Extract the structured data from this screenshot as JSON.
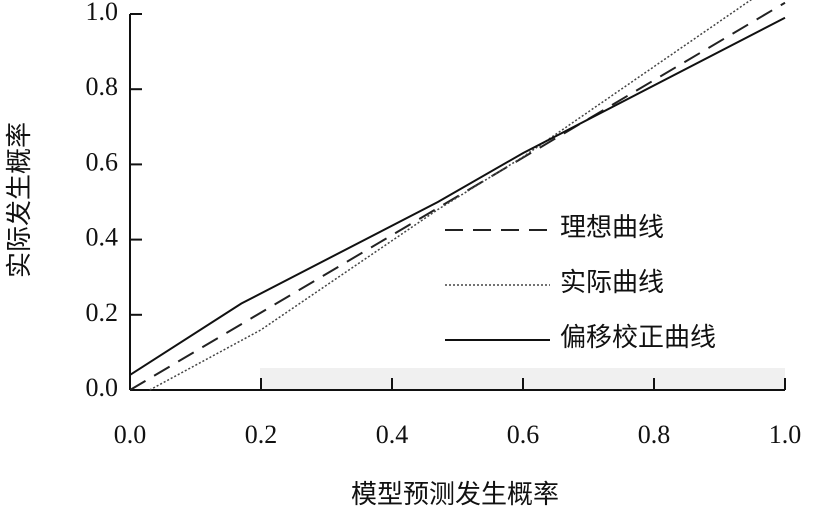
{
  "chart_data": {
    "type": "line",
    "x_label": "模型预测发生概率",
    "y_label": "实际发生概率",
    "xlim": [
      0,
      1
    ],
    "ylim": [
      0,
      1
    ],
    "xticks": [
      {
        "value": 0,
        "label": "0.0"
      },
      0.2,
      0.4,
      0.6,
      0.8,
      {
        "value": 1,
        "label": "1.0"
      }
    ],
    "yticks": [
      {
        "value": 0,
        "label": "0.0"
      },
      0.2,
      0.4,
      0.6,
      0.8,
      {
        "value": 1,
        "label": "1.0"
      }
    ],
    "series": [
      {
        "name": "理想曲线",
        "color": "#222222",
        "linestyle": "dashed",
        "x": [
          0,
          1
        ],
        "values": [
          0,
          1.03
        ]
      },
      {
        "name": "实际曲线",
        "color": "#444444",
        "linestyle": "dotted",
        "x": [
          0.03,
          0.2,
          0.47,
          0.6,
          0.95
        ],
        "values": [
          0,
          0.16,
          0.48,
          0.62,
          1.04
        ]
      },
      {
        "name": "偏移校正曲线",
        "color": "#111111",
        "linestyle": "solid",
        "x": [
          0,
          0.17,
          0.47,
          0.6,
          1
        ],
        "values": [
          0.04,
          0.23,
          0.5,
          0.63,
          0.99
        ]
      }
    ]
  }
}
